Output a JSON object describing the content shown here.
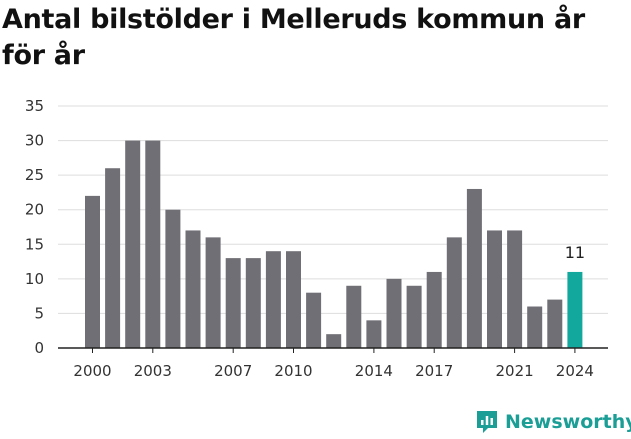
{
  "chart_data": {
    "type": "bar",
    "title": "Antal bilstölder i Melleruds kommun år för år",
    "x": [
      2000,
      2001,
      2002,
      2003,
      2004,
      2005,
      2006,
      2007,
      2008,
      2009,
      2010,
      2011,
      2012,
      2013,
      2014,
      2015,
      2016,
      2017,
      2018,
      2019,
      2020,
      2021,
      2022,
      2023,
      2024
    ],
    "values": [
      22,
      26,
      30,
      30,
      20,
      17,
      16,
      13,
      13,
      14,
      14,
      8,
      2,
      9,
      4,
      10,
      9,
      11,
      16,
      23,
      17,
      17,
      6,
      7,
      11
    ],
    "x_tick_labels": [
      "2000",
      "2003",
      "2007",
      "2010",
      "2014",
      "2017",
      "2021",
      "2024"
    ],
    "y_ticks": [
      0,
      5,
      10,
      15,
      20,
      25,
      30,
      35
    ],
    "ylim": [
      0,
      35
    ],
    "grid": true,
    "highlight": {
      "x": 2024,
      "label": "11"
    },
    "colors": {
      "bar": "#6f6f75",
      "highlight": "#13a89e",
      "grid": "#dddddd",
      "axis": "#222222"
    }
  },
  "brand": {
    "name": "Newsworthy",
    "icon": "newsworthy-logo-icon",
    "color": "#1a9e96"
  }
}
